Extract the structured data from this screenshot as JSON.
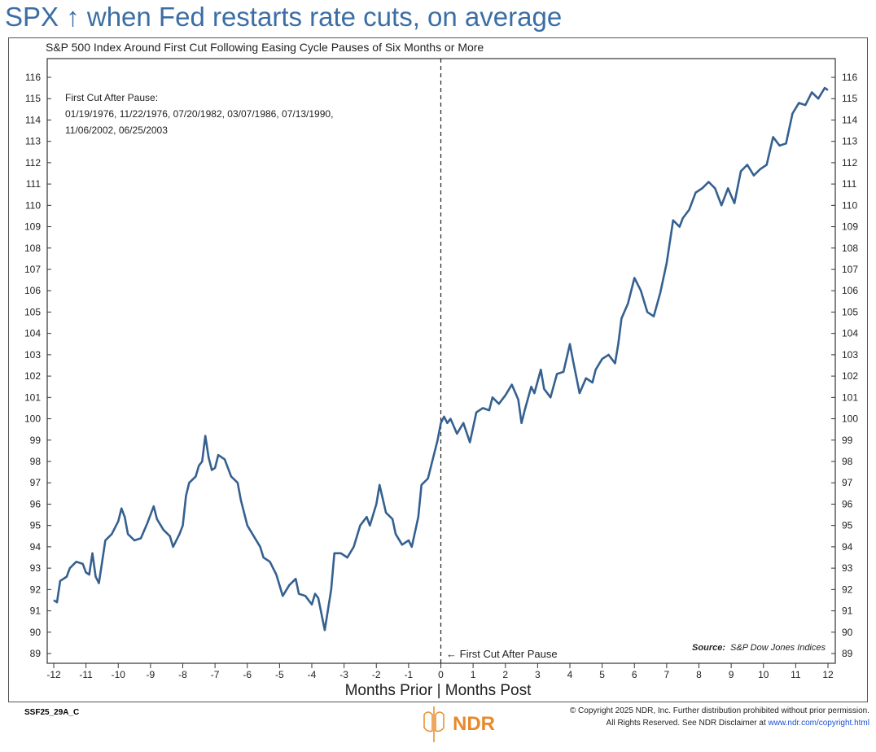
{
  "headline": "SPX ↑ when Fed restarts rate cuts, on average",
  "footer": {
    "code": "SSF25_29A_C",
    "logo_text": "NDR",
    "copyright_line1": "© Copyright 2025 NDR, Inc. Further distribution prohibited without prior permission.",
    "copyright_line2": "All Rights Reserved. See NDR Disclaimer at ",
    "link": "www.ndr.com/copyright.html"
  },
  "chart_data": {
    "type": "line",
    "title": "S&P 500 Index Around First Cut Following Easing Cycle Pauses of Six Months or More",
    "xlabel": "Months Prior | Months Post",
    "ylabel": "",
    "xlim": [
      -12,
      12
    ],
    "ylim": [
      89,
      116
    ],
    "x_ticks": [
      -12,
      -11,
      -10,
      -9,
      -8,
      -7,
      -6,
      -5,
      -4,
      -3,
      -2,
      -1,
      0,
      1,
      2,
      3,
      4,
      5,
      6,
      7,
      8,
      9,
      10,
      11,
      12
    ],
    "y_ticks": [
      89,
      90,
      91,
      92,
      93,
      94,
      95,
      96,
      97,
      98,
      99,
      100,
      101,
      102,
      103,
      104,
      105,
      106,
      107,
      108,
      109,
      110,
      111,
      112,
      113,
      114,
      115,
      116
    ],
    "annotation_title": "First Cut After Pause:",
    "annotation_line1": "01/19/1976, 11/22/1976, 07/20/1982, 03/07/1986, 07/13/1990,",
    "annotation_line2": "11/06/2002, 06/25/2003",
    "vline_label": "First Cut After Pause",
    "vline_x": 0,
    "source_label": "Source:",
    "source": "S&P Dow Jones Indices",
    "series": [
      {
        "name": "S&P 500 Index",
        "color": "#35608f",
        "x": [
          -12,
          -11.9,
          -11.8,
          -11.6,
          -11.5,
          -11.3,
          -11.1,
          -11,
          -10.9,
          -10.8,
          -10.7,
          -10.6,
          -10.4,
          -10.2,
          -10,
          -9.9,
          -9.8,
          -9.7,
          -9.5,
          -9.3,
          -9.1,
          -8.9,
          -8.8,
          -8.6,
          -8.4,
          -8.3,
          -8.1,
          -8,
          -7.9,
          -7.8,
          -7.6,
          -7.5,
          -7.4,
          -7.3,
          -7.2,
          -7.1,
          -7,
          -6.9,
          -6.7,
          -6.5,
          -6.3,
          -6.2,
          -6,
          -5.8,
          -5.6,
          -5.5,
          -5.3,
          -5.1,
          -4.9,
          -4.7,
          -4.5,
          -4.4,
          -4.2,
          -4,
          -3.9,
          -3.8,
          -3.6,
          -3.4,
          -3.3,
          -3.1,
          -2.9,
          -2.7,
          -2.5,
          -2.3,
          -2.2,
          -2,
          -1.9,
          -1.7,
          -1.5,
          -1.4,
          -1.2,
          -1,
          -0.9,
          -0.7,
          -0.6,
          -0.4,
          -0.3,
          -0.1,
          0,
          0.1,
          0.2,
          0.3,
          0.5,
          0.7,
          0.9,
          1.1,
          1.3,
          1.5,
          1.6,
          1.8,
          2,
          2.2,
          2.4,
          2.5,
          2.6,
          2.8,
          2.9,
          3.1,
          3.2,
          3.4,
          3.6,
          3.8,
          4,
          4.1,
          4.3,
          4.5,
          4.7,
          4.8,
          5,
          5.2,
          5.4,
          5.5,
          5.6,
          5.8,
          6,
          6.2,
          6.4,
          6.6,
          6.8,
          7,
          7.2,
          7.4,
          7.5,
          7.7,
          7.9,
          8.1,
          8.3,
          8.5,
          8.7,
          8.9,
          9.1,
          9.3,
          9.5,
          9.7,
          9.9,
          10.1,
          10.3,
          10.5,
          10.7,
          10.9,
          11.1,
          11.3,
          11.5,
          11.7,
          11.9,
          12
        ],
        "y": [
          91.5,
          91.4,
          92.4,
          92.6,
          93,
          93.3,
          93.2,
          92.8,
          92.7,
          93.7,
          92.6,
          92.3,
          94.3,
          94.6,
          95.2,
          95.8,
          95.4,
          94.6,
          94.3,
          94.4,
          95.1,
          95.9,
          95.3,
          94.8,
          94.5,
          94,
          94.6,
          95,
          96.4,
          97,
          97.3,
          97.8,
          98,
          99.2,
          98.2,
          97.6,
          97.7,
          98.3,
          98.1,
          97.3,
          97,
          96.2,
          95,
          94.5,
          94,
          93.5,
          93.3,
          92.7,
          91.7,
          92.2,
          92.5,
          91.8,
          91.7,
          91.3,
          91.8,
          91.6,
          90.1,
          92,
          93.7,
          93.7,
          93.5,
          94,
          95,
          95.4,
          95,
          96,
          96.9,
          95.6,
          95.3,
          94.6,
          94.1,
          94.3,
          94,
          95.4,
          96.9,
          97.2,
          97.8,
          99,
          99.8,
          100.1,
          99.8,
          100,
          99.3,
          99.8,
          98.9,
          100.3,
          100.5,
          100.4,
          101,
          100.7,
          101.1,
          101.6,
          100.9,
          99.8,
          100.4,
          101.5,
          101.2,
          102.3,
          101.4,
          101,
          102.1,
          102.2,
          103.5,
          102.7,
          101.2,
          101.9,
          101.7,
          102.3,
          102.8,
          103,
          102.6,
          103.5,
          104.7,
          105.4,
          106.6,
          106,
          105,
          104.8,
          105.9,
          107.3,
          109.3,
          109,
          109.4,
          109.8,
          110.6,
          110.8,
          111.1,
          110.8,
          110,
          110.8,
          110.1,
          111.6,
          111.9,
          111.4,
          111.7,
          111.9,
          113.2,
          112.8,
          112.9,
          114.3,
          114.8,
          114.7,
          115.3,
          115,
          115.5,
          115.4
        ]
      }
    ]
  }
}
